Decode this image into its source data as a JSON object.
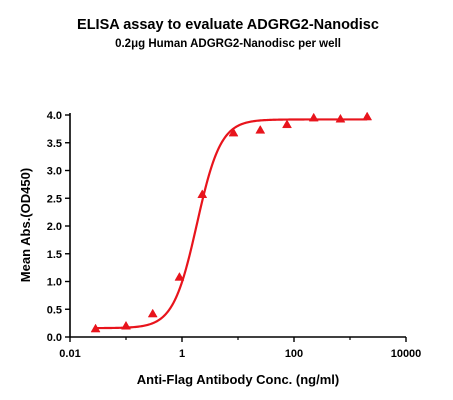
{
  "chart_data": {
    "type": "scatter",
    "title": "ELISA assay to evaluate ADGRG2-Nanodisc",
    "subtitle": "0.2μg Human ADGRG2-Nanodisc per well",
    "xlabel": "Anti-Flag Antibody Conc. (ng/ml)",
    "ylabel": "Mean Abs.(OD450)",
    "xscale": "log",
    "xlim": [
      0.01,
      10000
    ],
    "ylim": [
      0.0,
      4.0
    ],
    "xticks": [
      0.01,
      1,
      100,
      10000
    ],
    "xtick_labels": [
      "0.01",
      "1",
      "100",
      "10000"
    ],
    "yticks": [
      0.0,
      0.5,
      1.0,
      1.5,
      2.0,
      2.5,
      3.0,
      3.5,
      4.0
    ],
    "ytick_labels": [
      "0.0",
      "0.5",
      "1.0",
      "1.5",
      "2.0",
      "2.5",
      "3.0",
      "3.5",
      "4.0"
    ],
    "grid": false,
    "color": "#e8141c",
    "series": [
      {
        "marker": "triangle",
        "x": [
          0.0286,
          0.1,
          0.3,
          0.9,
          2.3,
          8.3,
          25,
          75,
          225,
          675,
          2025
        ],
        "y": [
          0.15,
          0.2,
          0.42,
          1.08,
          2.57,
          3.68,
          3.73,
          3.83,
          3.95,
          3.93,
          3.97
        ]
      }
    ],
    "fit": {
      "type": "4PL",
      "bottom": 0.16,
      "top": 3.92,
      "ec50": 1.85,
      "hill": 2.05
    }
  }
}
